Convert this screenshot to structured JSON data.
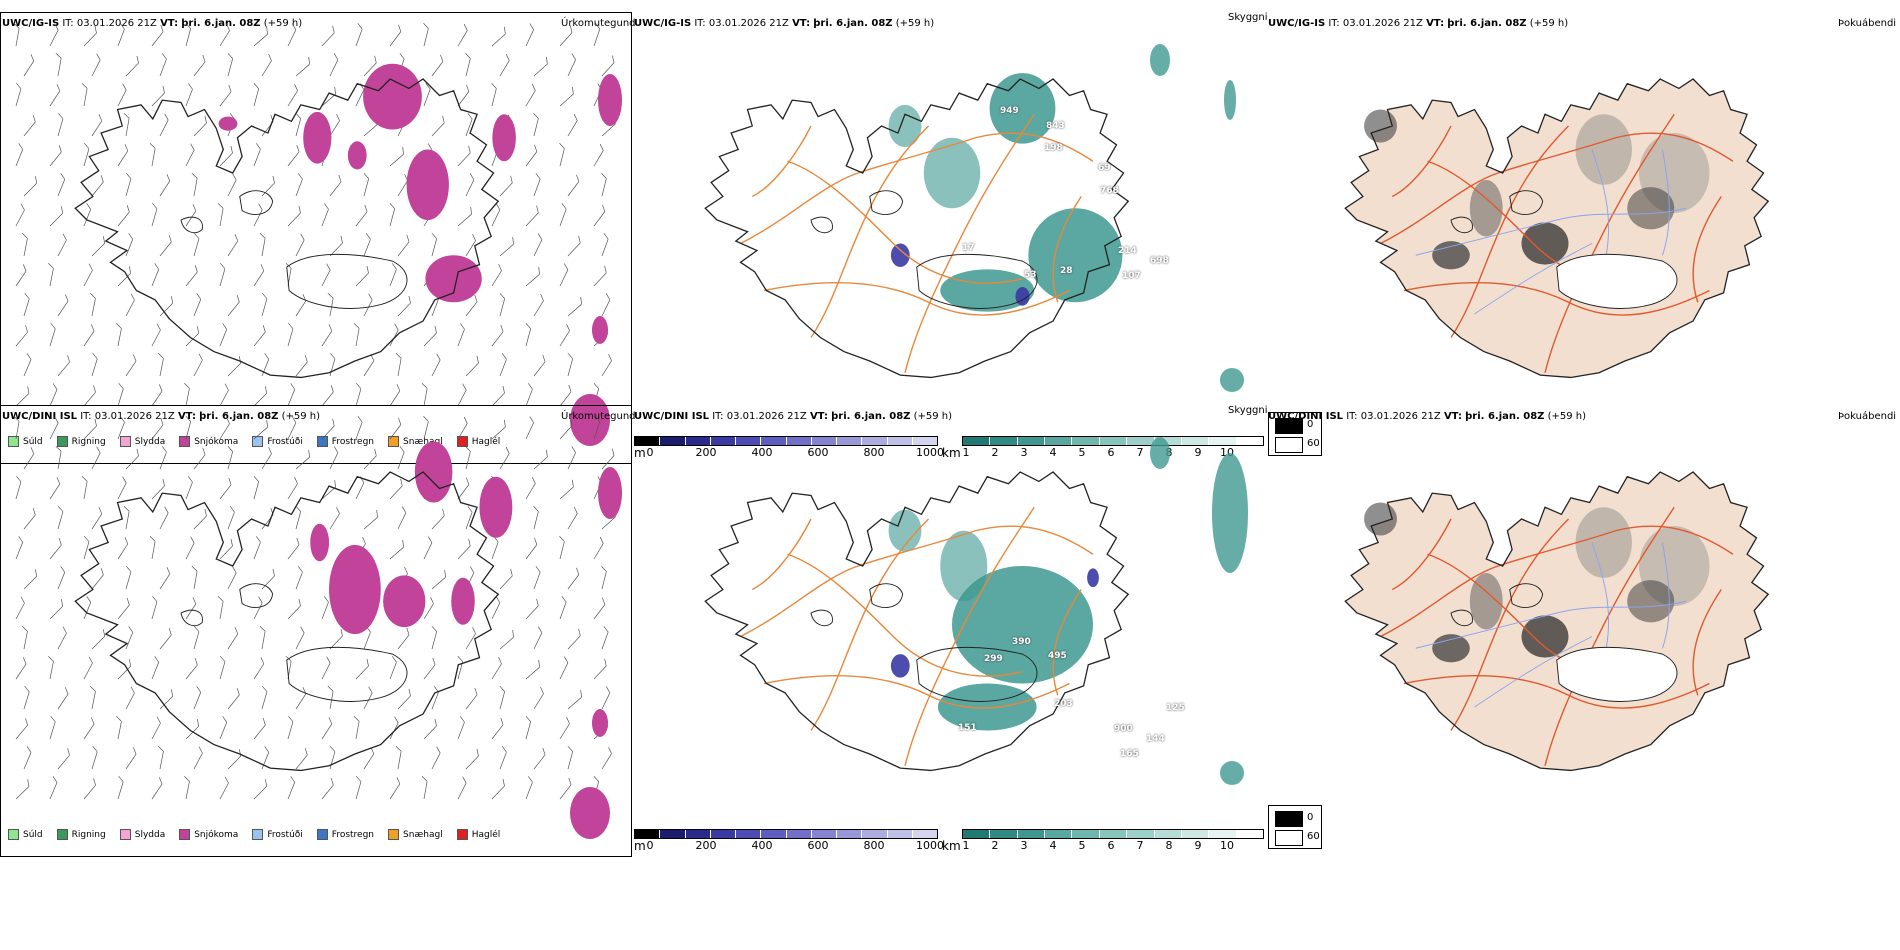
{
  "rows": [
    {
      "model": "UWC/IG-IS",
      "it_label": "IT:",
      "it_value": "03.01.2026 21Z",
      "vt_label": "VT:",
      "vt_value": "þri. 6.jan. 08Z",
      "offset": "(+59 h)",
      "cloud_labels": [
        "949",
        "843",
        "198",
        "69",
        "768",
        "214",
        "698",
        "107",
        "28",
        "53",
        "17"
      ]
    },
    {
      "model": "UWC/DINI ISL",
      "it_label": "IT:",
      "it_value": "03.01.2026 21Z",
      "vt_label": "VT:",
      "vt_value": "þri. 6.jan. 08Z",
      "offset": "(+59 h)",
      "cloud_labels": [
        "390",
        "299",
        "495",
        "203",
        "900",
        "165",
        "125",
        "144",
        "151"
      ]
    }
  ],
  "panels": {
    "precip_title": "Úrkomutegund",
    "cloud_title": "Skyggni",
    "fog_title": "Þokuábendi"
  },
  "precip_legend": [
    {
      "label": "Súld",
      "color": "#8ee68e"
    },
    {
      "label": "Rigning",
      "color": "#3a9a5c"
    },
    {
      "label": "Slydda",
      "color": "#f4a6d2"
    },
    {
      "label": "Snjókoma",
      "color": "#c2449a"
    },
    {
      "label": "Frostúði",
      "color": "#9cc3ee"
    },
    {
      "label": "Frostregn",
      "color": "#3a78c4"
    },
    {
      "label": "Snæhagl",
      "color": "#f0a02a"
    },
    {
      "label": "Haglél",
      "color": "#e02020"
    }
  ],
  "height_bar": {
    "unit": "m",
    "ticks": [
      "0",
      "200",
      "400",
      "600",
      "800",
      "1000"
    ],
    "colors": [
      "#000000",
      "#1c1c6c",
      "#2a2a8e",
      "#3a3aa4",
      "#4c4cb4",
      "#5e5ec0",
      "#7070c8",
      "#8484d0",
      "#9898d8",
      "#acacdf",
      "#c0c0e6",
      "#d4d4ee"
    ]
  },
  "vis_bar": {
    "unit": "km",
    "ticks": [
      "1",
      "2",
      "3",
      "4",
      "5",
      "6",
      "7",
      "8",
      "9",
      "10"
    ],
    "colors": [
      "#1e7a72",
      "#2e8a82",
      "#3e9890",
      "#56a8a0",
      "#6eb6ae",
      "#86c4bc",
      "#9ed0ca",
      "#b6dcd6",
      "#cee8e4",
      "#e6f4f2",
      "#ffffff"
    ]
  },
  "fog_legend": [
    "0",
    "60"
  ],
  "colors": {
    "snow": "#c2449a",
    "vis": "#3e9890",
    "lowcloud": "#3a3aa4",
    "roads": "#e8883a",
    "fog_land": "#f2dfcf",
    "fog_roads": "#e05a30",
    "fog_rivers": "#8aa4ee"
  }
}
